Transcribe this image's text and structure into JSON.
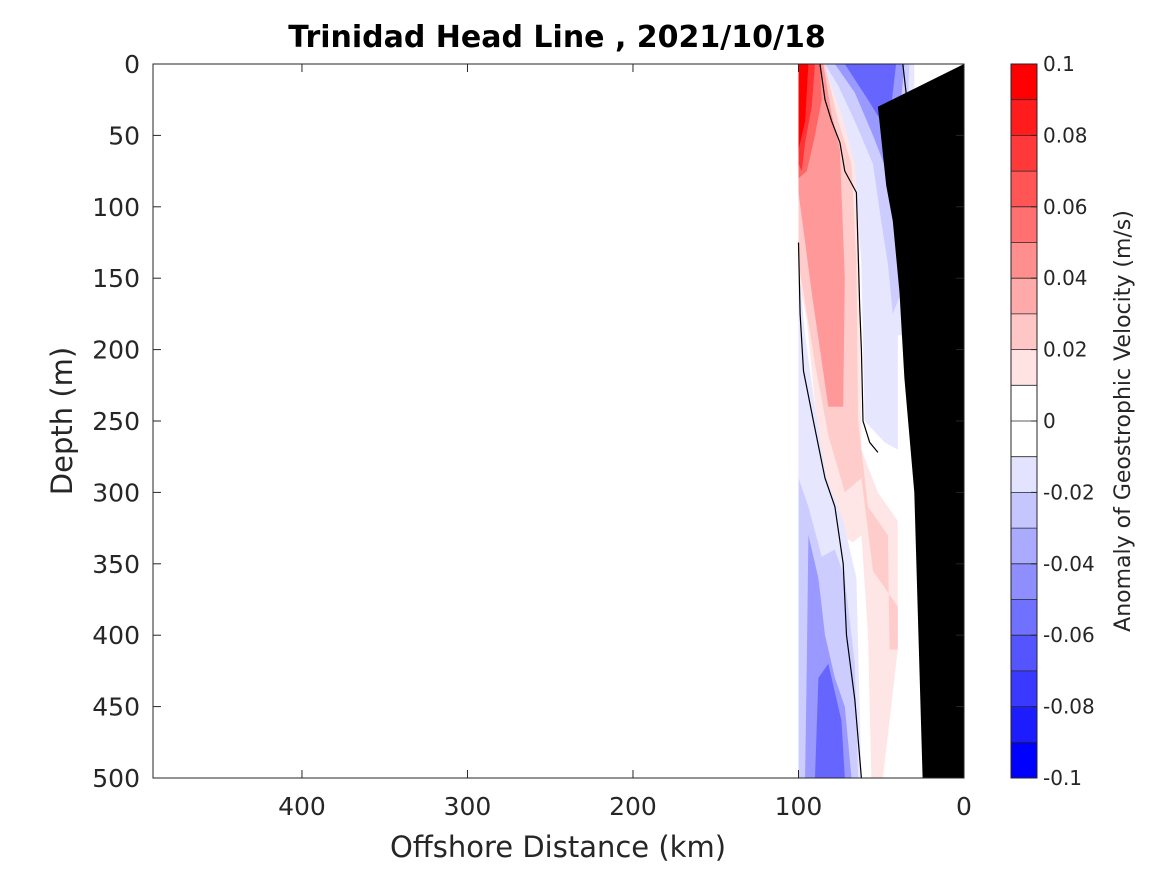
{
  "chart_data": {
    "type": "heatmap",
    "title": "Trinidad Head Line , 2021/10/18",
    "xlabel": "Offshore Distance (km)",
    "ylabel": "Depth (m)",
    "xlim": [
      490,
      0
    ],
    "ylim": [
      0,
      500
    ],
    "x_reversed": true,
    "y_reversed": true,
    "x_ticks": [
      400,
      300,
      200,
      100,
      0
    ],
    "x_tick_labels": [
      "400",
      "300",
      "200",
      "100",
      "0"
    ],
    "y_ticks": [
      0,
      50,
      100,
      150,
      200,
      250,
      300,
      350,
      400,
      450,
      500
    ],
    "y_tick_labels": [
      "0",
      "50",
      "100",
      "150",
      "200",
      "250",
      "300",
      "350",
      "400",
      "450",
      "500"
    ],
    "colorbar": {
      "label": "Anomaly of Geostrophic Velocity (m/s)",
      "range": [
        -0.1,
        0.1
      ],
      "ticks": [
        0.1,
        0.08,
        0.06,
        0.04,
        0.02,
        0,
        -0.02,
        -0.04,
        -0.06,
        -0.08,
        -0.1
      ],
      "tick_labels": [
        "0.1",
        "0.08",
        "0.06",
        "0.04",
        "0.02",
        "0",
        "-0.02",
        "-0.04",
        "-0.06",
        "-0.08",
        "-0.1"
      ],
      "colors": [
        "#ff0000",
        "#ff1c1c",
        "#ff3939",
        "#ff5555",
        "#ff7171",
        "#ff8e8e",
        "#ffaaaa",
        "#ffc6c6",
        "#ffe3e3",
        "#ffffff",
        "#ffffff",
        "#e3e3ff",
        "#c6c6ff",
        "#aaaaff",
        "#8e8eff",
        "#7171ff",
        "#5555ff",
        "#3939ff",
        "#1c1cff",
        "#0000ff"
      ]
    },
    "positive_color": "#ff0000",
    "negative_color": "#0000ff",
    "bathymetry_color": "#000000",
    "data_extent_km": [
      0,
      100
    ],
    "positive_anomaly_regions": [
      {
        "value": 0.1,
        "points": [
          [
            100,
            0
          ],
          [
            94,
            0
          ],
          [
            96,
            40
          ],
          [
            100,
            60
          ]
        ]
      },
      {
        "value": 0.08,
        "points": [
          [
            100,
            0
          ],
          [
            90,
            0
          ],
          [
            92,
            30
          ],
          [
            96,
            55
          ],
          [
            98,
            75
          ],
          [
            100,
            70
          ]
        ]
      },
      {
        "value": 0.06,
        "points": [
          [
            100,
            0
          ],
          [
            87,
            0
          ],
          [
            86,
            25
          ],
          [
            90,
            50
          ],
          [
            95,
            75
          ],
          [
            100,
            80
          ]
        ]
      },
      {
        "value": 0.04,
        "points": [
          [
            100,
            0
          ],
          [
            85,
            0
          ],
          [
            80,
            35
          ],
          [
            75,
            60
          ],
          [
            72,
            150
          ],
          [
            73,
            240
          ],
          [
            82,
            240
          ],
          [
            92,
            160
          ],
          [
            100,
            90
          ]
        ]
      },
      {
        "value": 0.02,
        "points": [
          [
            100,
            0
          ],
          [
            84,
            0
          ],
          [
            76,
            40
          ],
          [
            68,
            70
          ],
          [
            65,
            140
          ],
          [
            64,
            250
          ],
          [
            58,
            310
          ],
          [
            46,
            330
          ],
          [
            45,
            410
          ],
          [
            40,
            410
          ],
          [
            40,
            380
          ],
          [
            55,
            355
          ],
          [
            62,
            290
          ],
          [
            72,
            300
          ],
          [
            82,
            260
          ],
          [
            90,
            210
          ],
          [
            97,
            160
          ],
          [
            100,
            140
          ]
        ]
      },
      {
        "value": 0.01,
        "points": [
          [
            98,
            0
          ],
          [
            80,
            0
          ],
          [
            72,
            35
          ],
          [
            64,
            65
          ],
          [
            63,
            140
          ],
          [
            62,
            270
          ],
          [
            52,
            300
          ],
          [
            40,
            320
          ],
          [
            40,
            410
          ],
          [
            49,
            500
          ],
          [
            56,
            500
          ],
          [
            58,
            400
          ],
          [
            62,
            330
          ],
          [
            67,
            335
          ],
          [
            75,
            330
          ],
          [
            83,
            300
          ],
          [
            89,
            250
          ],
          [
            95,
            180
          ],
          [
            100,
            150
          ],
          [
            100,
            0
          ]
        ]
      }
    ],
    "negative_anomaly_regions": [
      {
        "value": -0.01,
        "points": [
          [
            84,
            0
          ],
          [
            30,
            0
          ],
          [
            30,
            190
          ],
          [
            40,
            190
          ],
          [
            40,
            270
          ],
          [
            48,
            265
          ],
          [
            60,
            250
          ],
          [
            62,
            140
          ],
          [
            66,
            70
          ],
          [
            74,
            35
          ],
          [
            82,
            10
          ]
        ]
      },
      {
        "value": -0.02,
        "points": [
          [
            84,
            0
          ],
          [
            33,
            0
          ],
          [
            35,
            60
          ],
          [
            38,
            160
          ],
          [
            43,
            175
          ],
          [
            46,
            140
          ],
          [
            50,
            110
          ],
          [
            55,
            70
          ],
          [
            66,
            40
          ],
          [
            76,
            15
          ]
        ]
      },
      {
        "value": -0.04,
        "points": [
          [
            78,
            0
          ],
          [
            36,
            0
          ],
          [
            40,
            50
          ],
          [
            45,
            80
          ],
          [
            55,
            50
          ],
          [
            66,
            20
          ]
        ]
      },
      {
        "value": -0.06,
        "points": [
          [
            72,
            0
          ],
          [
            41,
            0
          ],
          [
            44,
            30
          ],
          [
            50,
            40
          ],
          [
            58,
            25
          ]
        ]
      },
      {
        "value": -0.01,
        "points": [
          [
            100,
            140
          ],
          [
            96,
            190
          ],
          [
            90,
            240
          ],
          [
            83,
            290
          ],
          [
            73,
            320
          ],
          [
            65,
            360
          ],
          [
            62,
            500
          ],
          [
            100,
            500
          ]
        ]
      },
      {
        "value": -0.02,
        "points": [
          [
            100,
            290
          ],
          [
            94,
            310
          ],
          [
            86,
            345
          ],
          [
            78,
            340
          ],
          [
            72,
            360
          ],
          [
            66,
            420
          ],
          [
            64,
            500
          ],
          [
            100,
            500
          ]
        ]
      },
      {
        "value": -0.04,
        "points": [
          [
            94,
            330
          ],
          [
            88,
            360
          ],
          [
            84,
            400
          ],
          [
            78,
            430
          ],
          [
            72,
            450
          ],
          [
            68,
            500
          ],
          [
            96,
            500
          ],
          [
            95,
            420
          ]
        ]
      },
      {
        "value": -0.06,
        "points": [
          [
            88,
            430
          ],
          [
            82,
            420
          ],
          [
            74,
            460
          ],
          [
            72,
            500
          ],
          [
            90,
            500
          ]
        ]
      }
    ],
    "zero_contours": [
      [
        [
          87,
          0
        ],
        [
          84,
          25
        ],
        [
          80,
          40
        ],
        [
          75,
          55
        ],
        [
          72,
          75
        ],
        [
          65,
          90
        ],
        [
          64,
          130
        ],
        [
          63,
          170
        ],
        [
          62,
          200
        ],
        [
          61,
          250
        ],
        [
          57,
          265
        ],
        [
          52,
          272
        ]
      ],
      [
        [
          100,
          125
        ],
        [
          99,
          175
        ],
        [
          97,
          215
        ],
        [
          91,
          250
        ],
        [
          84,
          290
        ],
        [
          78,
          310
        ],
        [
          73,
          350
        ],
        [
          71,
          400
        ],
        [
          66,
          445
        ],
        [
          62,
          500
        ]
      ],
      [
        [
          37,
          0
        ],
        [
          32,
          50
        ]
      ],
      [
        [
          30,
          170
        ],
        [
          29,
          180
        ]
      ]
    ],
    "bathymetry_polygon": [
      [
        0,
        0
      ],
      [
        0,
        500
      ],
      [
        25,
        500
      ],
      [
        30,
        300
      ],
      [
        36,
        220
      ],
      [
        39,
        160
      ],
      [
        43,
        110
      ],
      [
        47,
        85
      ],
      [
        52,
        30
      ]
    ]
  }
}
